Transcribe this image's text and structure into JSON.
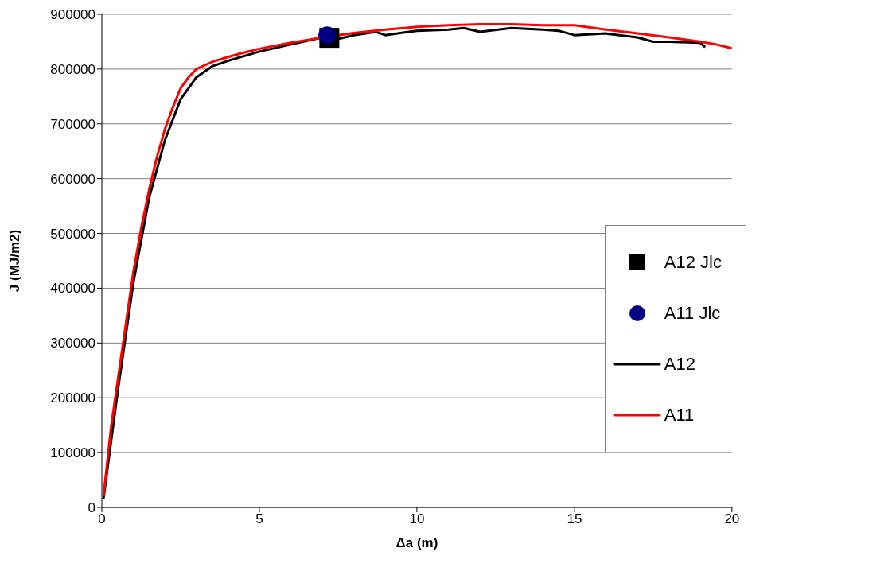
{
  "chart_data": {
    "type": "line",
    "xlabel": "Δa (m)",
    "ylabel": "J (MJ/m2)",
    "xlim": [
      0,
      20
    ],
    "xticks": [
      0,
      5,
      10,
      15,
      20
    ],
    "ylim": [
      0,
      900000
    ],
    "yticks": [
      0,
      100000,
      200000,
      300000,
      400000,
      500000,
      600000,
      700000,
      800000,
      900000
    ],
    "grid": "y",
    "legend": "right",
    "line_style": "solid",
    "series": [
      {
        "name": "A12 Jlc",
        "type": "scatter",
        "marker": "square",
        "color": "#000000",
        "x": [
          7.22
        ],
        "values": [
          857000
        ]
      },
      {
        "name": "A11 Jlc",
        "type": "scatter",
        "marker": "circle",
        "color": "#000080",
        "x": [
          7.15
        ],
        "values": [
          862000
        ]
      },
      {
        "name": "A12",
        "type": "line",
        "marker": "none",
        "color": "#000000",
        "x": [
          0.05,
          0.5,
          1,
          1.5,
          2,
          2.5,
          3,
          3.5,
          4,
          5,
          6,
          7,
          7.5,
          8,
          8.7,
          9,
          10,
          11,
          11.5,
          12,
          13,
          14,
          14.5,
          15,
          16,
          17,
          17.5,
          18,
          19,
          19.15
        ],
        "values": [
          15000,
          210000,
          410000,
          565000,
          670000,
          745000,
          785000,
          805000,
          815000,
          832000,
          845000,
          858000,
          855000,
          862000,
          868000,
          862000,
          870000,
          872000,
          875000,
          868000,
          875000,
          872000,
          870000,
          862000,
          865000,
          858000,
          850000,
          850000,
          848000,
          840000
        ]
      },
      {
        "name": "A11",
        "type": "line",
        "marker": "none",
        "color": "#ff0000",
        "x": [
          0.05,
          0.3,
          0.5,
          0.75,
          1,
          1.25,
          1.5,
          1.75,
          2,
          2.25,
          2.5,
          2.75,
          3,
          3.5,
          4,
          4.5,
          5,
          6,
          6.5,
          7.5,
          8,
          9,
          10,
          11,
          12,
          13,
          14,
          15,
          16,
          17,
          18,
          19,
          19.5,
          20
        ],
        "values": [
          20000,
          150000,
          230000,
          330000,
          430000,
          510000,
          580000,
          640000,
          690000,
          730000,
          765000,
          785000,
          800000,
          813000,
          822000,
          830000,
          837000,
          848000,
          853000,
          862000,
          866000,
          872000,
          877000,
          880000,
          882000,
          882000,
          880000,
          880000,
          872000,
          865000,
          858000,
          850000,
          845000,
          838000
        ]
      }
    ]
  }
}
